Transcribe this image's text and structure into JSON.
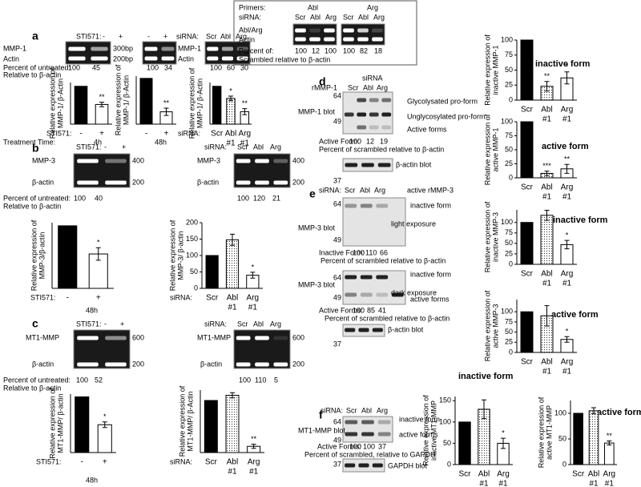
{
  "figure_text": [
    "a",
    "STI571:",
    "-",
    "+",
    "MMP-1",
    "Actin",
    "300bp",
    "200bp",
    "-",
    "+",
    "siRNA:",
    "Scr",
    "Abl",
    "Arg",
    "MMP-1",
    "Actin",
    "Percent of untreated:",
    "100",
    "45",
    "100",
    "34",
    "100",
    "60",
    "30",
    "Relative to β-actin",
    "Treatment Time:",
    "4h",
    "48h",
    "Primers:",
    "Abl",
    "Arg",
    "siRNA:",
    "Scr",
    "Abl",
    "Arg",
    "Scr",
    "Abl",
    "Arg",
    "Abl/Arg",
    "Actin",
    "Percent of:",
    "100",
    "12",
    "100",
    "100",
    "82",
    "18",
    "Scrambled relative to β-actin",
    "b",
    "STI571:",
    "-",
    "+",
    "MMP-3",
    "β-actin",
    "400",
    "200",
    "siRNA:",
    "Scr",
    "Abl",
    "Arg",
    "MMP-3",
    "β-actin",
    "400",
    "200",
    "Percent of untreated:",
    "100",
    "40",
    "100",
    "120",
    "21",
    "Relative to β-actin",
    "48h",
    "c",
    "STI571:",
    "-",
    "+",
    "MT1-MMP",
    "β-actin",
    "600",
    "200",
    "siRNA:",
    "Scr",
    "Abl",
    "Arg",
    "MT1-MMP",
    "β-actin",
    "600",
    "200",
    "Percent of untreated:",
    "100",
    "52",
    "100",
    "110",
    "5",
    "Relative to β-actin",
    "48h",
    "d",
    "rMMP-1",
    "siRNA",
    "Scr",
    "Abl",
    "Arg",
    "64",
    "49",
    "MMP-1 blot",
    "Glycolysated pro-form",
    "Unglycosylated pro-form",
    "Active forms",
    "Active Form:",
    "100",
    "12",
    "19",
    "Percent of scrambled relative to β-actin",
    "β-actin blot",
    "37",
    "e",
    "siRNA:",
    "Scr",
    "Abl",
    "Arg",
    "active rMMP-3",
    "64",
    "49",
    "MMP-3 blot",
    "inactive form",
    "light exposure",
    "Inactive Form:",
    "100",
    "110",
    "66",
    "Percent of scrambled relative to β-actin",
    "64",
    "MMP-3 blot",
    "inactive form",
    "dark exposure",
    "active forms",
    "49",
    "Active Forms:",
    "100",
    "85",
    "41",
    "Percent of scrambled relative to β-actin",
    "β-actin blot",
    "37",
    "f",
    "siRNA:",
    "Scr",
    "Abl",
    "Arg",
    "64",
    "49",
    "MT1-MMP blot",
    "inactive form",
    "active forms",
    "Active Forms:",
    "100",
    "100",
    "37",
    "Percent of scrambled, relative to GAPDH",
    "GAPDH blot",
    "37"
  ],
  "chart_data": [
    {
      "type": "bar",
      "xlabel": "STI571:",
      "categories": [
        "-",
        "+"
      ],
      "values": [
        100,
        52
      ],
      "errors": [
        0,
        6
      ],
      "stars": [
        null,
        "**"
      ],
      "fills": [
        "solid",
        "open"
      ],
      "ylim": [
        0,
        110
      ],
      "ylabel": [
        "Relative expression of",
        "MMP-1/ β-Actin"
      ]
    },
    {
      "type": "bar",
      "categories": [
        "-",
        "+"
      ],
      "values": [
        100,
        27
      ],
      "errors": [
        0,
        8
      ],
      "stars": [
        null,
        "**"
      ],
      "fills": [
        "solid",
        "open"
      ],
      "ylim": [
        0,
        105
      ],
      "ylabel": [
        "Relative expression of",
        "MMP-1/ β-Actin"
      ]
    },
    {
      "type": "bar",
      "xlabel": "siRNA:",
      "categories": [
        "Scr",
        "Abl",
        "Arg"
      ],
      "sublabels": [
        null,
        "#1",
        "#1"
      ],
      "values": [
        100,
        68,
        33
      ],
      "errors": [
        0,
        6,
        8
      ],
      "stars": [
        null,
        "*",
        "**"
      ],
      "fills": [
        "solid",
        "dotted",
        "open"
      ],
      "ylim": [
        0,
        110
      ],
      "ylabel": [
        "Relative expression of",
        "MMP-1/ β-Actin"
      ]
    },
    {
      "type": "bar",
      "xlabel": "STI571:",
      "categories": [
        "-",
        "+"
      ],
      "values": [
        100,
        55
      ],
      "errors": [
        0,
        10
      ],
      "stars": [
        null,
        "*"
      ],
      "fills": [
        "solid",
        "open"
      ],
      "ylim": [
        0,
        105
      ],
      "ylabel": [
        "Relative expression of",
        "MMP-3/β-actin"
      ]
    },
    {
      "type": "bar",
      "xlabel": "siRNA:",
      "categories": [
        "Scr",
        "Abl",
        "Arg"
      ],
      "sublabels": [
        null,
        "#1",
        "#1"
      ],
      "values": [
        100,
        148,
        40
      ],
      "errors": [
        0,
        17,
        9
      ],
      "stars": [
        null,
        null,
        "*"
      ],
      "fills": [
        "solid",
        "dotted",
        "open"
      ],
      "ylim": [
        0,
        200
      ],
      "yticks": [
        0,
        50,
        100,
        150,
        200
      ],
      "ylabel": [
        "Relative expression of",
        "MMP-3/ β-actin"
      ]
    },
    {
      "type": "bar",
      "xlabel": "STI571:",
      "categories": [
        "-",
        "+"
      ],
      "values": [
        100,
        50
      ],
      "errors": [
        0,
        5
      ],
      "stars": [
        null,
        "*"
      ],
      "fills": [
        "solid",
        "open"
      ],
      "ylim": [
        0,
        105
      ],
      "ylabel": [
        "Relative expression of",
        "MT1-MMP/ β-actin"
      ]
    },
    {
      "type": "bar",
      "xlabel": "siRNA:",
      "categories": [
        "Scr",
        "Abl",
        "Arg"
      ],
      "sublabels": [
        null,
        "#1",
        "#1"
      ],
      "values": [
        100,
        110,
        12
      ],
      "errors": [
        0,
        5,
        4
      ],
      "stars": [
        null,
        null,
        "**"
      ],
      "fills": [
        "solid",
        "dotted",
        "open"
      ],
      "ylim": [
        0,
        120
      ],
      "ylabel": [
        "Relative expression of",
        "MT1-MMP/ β-Actin"
      ]
    },
    {
      "type": "bar",
      "title": "inactive form",
      "categories": [
        "Scr",
        "Abl",
        "Arg"
      ],
      "sublabels": [
        null,
        "#1",
        "#1"
      ],
      "values": [
        100,
        23,
        37
      ],
      "errors": [
        0,
        8,
        10
      ],
      "stars": [
        null,
        "**",
        "*"
      ],
      "fills": [
        "solid",
        "dotted",
        "open"
      ],
      "ylim": [
        0,
        100
      ],
      "yticks": [
        0,
        25,
        50,
        75,
        100
      ],
      "ylabel": [
        "Relative expression of",
        "inactive MMP-1"
      ]
    },
    {
      "type": "bar",
      "title": "active form",
      "categories": [
        "Scr",
        "Abl",
        "Arg"
      ],
      "sublabels": [
        null,
        "#1",
        "#1"
      ],
      "values": [
        100,
        8,
        16
      ],
      "errors": [
        0,
        4,
        8
      ],
      "stars": [
        null,
        "***",
        "**"
      ],
      "fills": [
        "solid",
        "dotted",
        "open"
      ],
      "ylim": [
        0,
        100
      ],
      "yticks": [
        0,
        25,
        50,
        75,
        100
      ],
      "ylabel": [
        "Relative expression of",
        "active MMP-1"
      ]
    },
    {
      "type": "bar",
      "title": "inactive form",
      "categories": [
        "Scr",
        "Abl",
        "Arg"
      ],
      "sublabels": [
        null,
        "#1",
        "#1"
      ],
      "values": [
        100,
        117,
        47
      ],
      "errors": [
        0,
        12,
        10
      ],
      "stars": [
        null,
        null,
        "*"
      ],
      "fills": [
        "solid",
        "dotted",
        "open"
      ],
      "ylim": [
        0,
        130
      ],
      "yticks": [
        0,
        25,
        50,
        75,
        100
      ],
      "ylabel": [
        "Relative expression of",
        "inactive MMP-3"
      ]
    },
    {
      "type": "bar",
      "title": "active form",
      "categories": [
        "Scr",
        "Abl",
        "Arg"
      ],
      "sublabels": [
        null,
        "#1",
        "#1"
      ],
      "values": [
        100,
        90,
        32
      ],
      "errors": [
        0,
        25,
        7
      ],
      "stars": [
        null,
        null,
        "*"
      ],
      "fills": [
        "solid",
        "dotted",
        "open"
      ],
      "ylim": [
        0,
        130
      ],
      "yticks": [
        0,
        25,
        50,
        75,
        100
      ],
      "ylabel": [
        "Relative expression of",
        "active MMP-3"
      ]
    },
    {
      "type": "bar",
      "title": "inactive form",
      "categories": [
        "Scr",
        "Abl",
        "Arg"
      ],
      "sublabels": [
        null,
        "#1",
        "#1"
      ],
      "values": [
        100,
        130,
        50
      ],
      "errors": [
        0,
        22,
        12
      ],
      "stars": [
        null,
        null,
        "*"
      ],
      "fills": [
        "solid",
        "dotted",
        "open"
      ],
      "ylim": [
        0,
        160
      ],
      "yticks": [
        0,
        50,
        100,
        150
      ],
      "ylabel": [
        "Relative expression of",
        "inactive MT1-MMP"
      ]
    },
    {
      "type": "bar",
      "title": "active form",
      "categories": [
        "Scr",
        "Abl",
        "Arg"
      ],
      "sublabels": [
        null,
        "#1",
        "#1"
      ],
      "values": [
        100,
        105,
        42
      ],
      "errors": [
        0,
        6,
        4
      ],
      "stars": [
        null,
        null,
        "**"
      ],
      "fills": [
        "solid",
        "dotted",
        "open"
      ],
      "ylim": [
        0,
        125
      ],
      "yticks": [
        0,
        50,
        100
      ],
      "ylabel": [
        "Relative expression of",
        "active MT1-MMP"
      ]
    }
  ]
}
